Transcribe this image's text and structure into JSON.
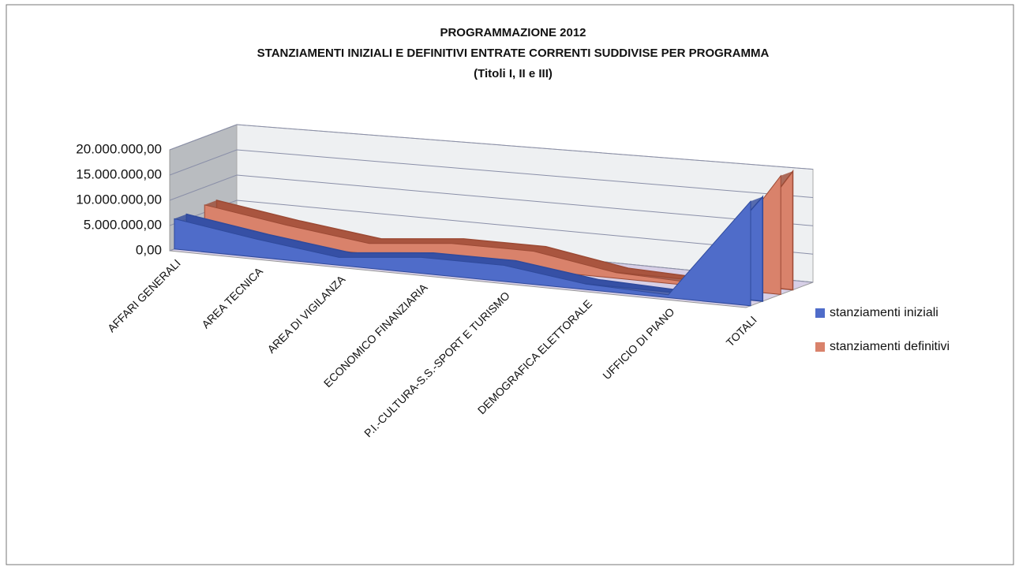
{
  "chart_data": {
    "type": "area3d",
    "title": "PROGRAMMAZIONE 2012",
    "subtitle": "STANZIAMENTI INIZIALI E DEFINITIVI ENTRATE CORRENTI SUDDIVISE PER PROGRAMMA",
    "note": "(Titoli I, II e III)",
    "categories": [
      "AFFARI GENERALI",
      "AREA TECNICA",
      "AREA DI VIGILANZA",
      "ECONOMICO FINANZIARIA",
      "P.I.-CULTURA-S.S.-SPORT E TURISMO",
      "DEMOGRAFICA ELETTORALE",
      "UFFICIO DI PIANO",
      "TOTALI"
    ],
    "series": [
      {
        "name": "stanziamenti iniziali",
        "color": "#4f6cc9",
        "values": [
          6000000,
          3500000,
          1500000,
          3000000,
          3000000,
          1000000,
          500000,
          18500000
        ]
      },
      {
        "name": "stanziamenti definitivi",
        "color": "#d9826b",
        "values": [
          6500000,
          4000000,
          2000000,
          3500000,
          3500000,
          1000000,
          500000,
          21000000
        ]
      }
    ],
    "ylim": [
      0,
      20000000
    ],
    "yticks": [
      {
        "value": 0,
        "label": "0,00"
      },
      {
        "value": 5000000,
        "label": "5.000.000,00"
      },
      {
        "value": 10000000,
        "label": "10.000.000,00"
      },
      {
        "value": 15000000,
        "label": "15.000.000,00"
      },
      {
        "value": 20000000,
        "label": "20.000.000,00"
      }
    ],
    "grid": true,
    "legend": "right"
  }
}
